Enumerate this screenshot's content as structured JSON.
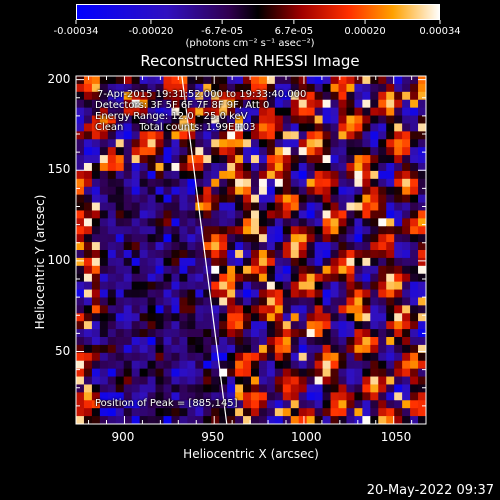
{
  "colorbar": {
    "tick_labels": [
      "-0.00034",
      "-0.00020",
      "-6.7e-05",
      "6.7e-05",
      "0.00020",
      "0.00034"
    ],
    "tick_values": [
      -0.00034,
      -0.0002,
      -6.7e-05,
      6.7e-05,
      0.0002,
      0.00034
    ],
    "units": "(photons cm⁻² s⁻¹ asec⁻²)",
    "range": [
      -0.00034,
      0.00034
    ]
  },
  "annotations": {
    "line1": "7-Apr-2015 19:31:52.000 to 19:33:40.000",
    "line2": "Detectors: 3F 5F 6F 7F 8F 9F, Att 0",
    "line3": "Energy Range: 12.0 - 25.0 keV",
    "line4": "Clean     Total counts: 1.99E+03",
    "peak": "Position of Peak = [885,145]"
  },
  "footer": "20-May-2022 09:37",
  "chart_data": {
    "type": "heatmap",
    "title": "Reconstructed RHESSI Image",
    "xlabel": "Heliocentric X (arcsec)",
    "ylabel": "Heliocentric Y (arcsec)",
    "xlim": [
      873,
      1068
    ],
    "ylim": [
      10,
      202
    ],
    "xticks": [
      900,
      950,
      1000,
      1050
    ],
    "yticks": [
      50,
      100,
      150,
      200
    ],
    "peak_position": [
      885,
      145
    ],
    "limb_line": [
      [
        932,
        202
      ],
      [
        957,
        10
      ]
    ],
    "colormap": "blue-purple-black-red-orange-yellow-white"
  }
}
